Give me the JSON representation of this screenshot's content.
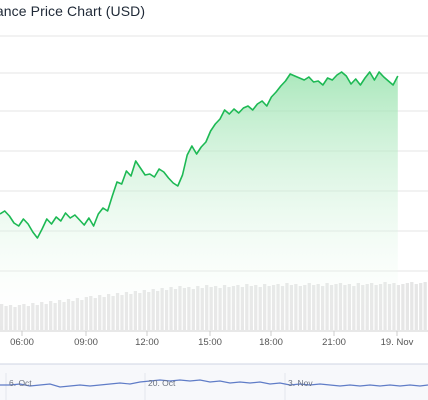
{
  "chart_data": {
    "type": "area",
    "title": "nance Price Chart (USD)",
    "colors": {
      "line": "#1db954",
      "fill": "#9be3b0",
      "volume": "#e6e6e6",
      "navigator": "#5f7cc7",
      "grid": "#e6e6e6"
    },
    "x_ticks": [
      "06:00",
      "09:00",
      "12:00",
      "15:00",
      "18:00",
      "21:00",
      "19. Nov"
    ],
    "price": {
      "x_range": [
        3.0,
        28.5
      ],
      "points": [
        [
          3.0,
          214
        ],
        [
          3.3,
          211
        ],
        [
          3.6,
          216
        ],
        [
          3.9,
          223
        ],
        [
          4.2,
          226
        ],
        [
          4.5,
          219
        ],
        [
          4.8,
          224
        ],
        [
          5.1,
          232
        ],
        [
          5.4,
          238
        ],
        [
          5.7,
          229
        ],
        [
          6.0,
          219
        ],
        [
          6.3,
          224
        ],
        [
          6.6,
          217
        ],
        [
          6.9,
          221
        ],
        [
          7.2,
          213
        ],
        [
          7.5,
          218
        ],
        [
          7.8,
          215
        ],
        [
          8.1,
          220
        ],
        [
          8.4,
          225
        ],
        [
          8.7,
          218
        ],
        [
          9.0,
          226
        ],
        [
          9.3,
          214
        ],
        [
          9.6,
          208
        ],
        [
          9.9,
          211
        ],
        [
          10.2,
          196
        ],
        [
          10.5,
          182
        ],
        [
          10.8,
          184
        ],
        [
          11.1,
          171
        ],
        [
          11.4,
          176
        ],
        [
          11.7,
          161
        ],
        [
          12.0,
          168
        ],
        [
          12.3,
          175
        ],
        [
          12.6,
          174
        ],
        [
          12.9,
          177
        ],
        [
          13.2,
          169
        ],
        [
          13.5,
          172
        ],
        [
          13.8,
          178
        ],
        [
          14.1,
          183
        ],
        [
          14.4,
          186
        ],
        [
          14.7,
          175
        ],
        [
          15.0,
          155
        ],
        [
          15.3,
          146
        ],
        [
          15.6,
          154
        ],
        [
          15.9,
          147
        ],
        [
          16.2,
          142
        ],
        [
          16.5,
          131
        ],
        [
          16.8,
          124
        ],
        [
          17.1,
          119
        ],
        [
          17.4,
          110
        ],
        [
          17.7,
          114
        ],
        [
          18.0,
          109
        ],
        [
          18.3,
          113
        ],
        [
          18.6,
          108
        ],
        [
          18.9,
          106
        ],
        [
          19.2,
          110
        ],
        [
          19.5,
          104
        ],
        [
          19.8,
          101
        ],
        [
          20.1,
          106
        ],
        [
          20.4,
          97
        ],
        [
          20.7,
          92
        ],
        [
          21.0,
          86
        ],
        [
          21.3,
          81
        ],
        [
          21.6,
          74
        ],
        [
          21.9,
          76
        ],
        [
          22.2,
          78
        ],
        [
          22.5,
          80
        ],
        [
          22.8,
          77
        ],
        [
          23.1,
          82
        ],
        [
          23.4,
          81
        ],
        [
          23.7,
          85
        ],
        [
          24.0,
          78
        ],
        [
          24.3,
          80
        ],
        [
          24.6,
          75
        ],
        [
          24.9,
          72
        ],
        [
          25.2,
          76
        ],
        [
          25.5,
          84
        ],
        [
          25.8,
          79
        ],
        [
          26.1,
          85
        ],
        [
          26.4,
          78
        ],
        [
          26.7,
          72
        ],
        [
          27.0,
          80
        ],
        [
          27.3,
          72
        ],
        [
          27.6,
          77
        ],
        [
          27.9,
          81
        ],
        [
          28.2,
          85
        ],
        [
          28.5,
          76
        ]
      ]
    },
    "volume": [
      304,
      306,
      305,
      307,
      305,
      304,
      306,
      303,
      305,
      302,
      304,
      301,
      303,
      300,
      302,
      299,
      301,
      298,
      300,
      297,
      296,
      298,
      295,
      297,
      294,
      296,
      293,
      295,
      292,
      294,
      291,
      293,
      290,
      292,
      289,
      291,
      288,
      290,
      287,
      289,
      286,
      288,
      287,
      289,
      286,
      288,
      285,
      287,
      286,
      288,
      285,
      287,
      286,
      285,
      287,
      284,
      286,
      285,
      287,
      284,
      286,
      285,
      284,
      286,
      283,
      285,
      284,
      286,
      285,
      283,
      285,
      284,
      286,
      283,
      285,
      284,
      283,
      285,
      284,
      286,
      283,
      285,
      284,
      283,
      285,
      284,
      282,
      284,
      283,
      285,
      284,
      283,
      282,
      284,
      283,
      282
    ],
    "navigator": {
      "labels": [
        "6. Oct",
        "20. Oct",
        "3. Nov"
      ],
      "points": [
        [
          0,
          385
        ],
        [
          10,
          385
        ],
        [
          20,
          384
        ],
        [
          30,
          386
        ],
        [
          40,
          385
        ],
        [
          50,
          384
        ],
        [
          60,
          387
        ],
        [
          70,
          386
        ],
        [
          80,
          385
        ],
        [
          90,
          386
        ],
        [
          100,
          385
        ],
        [
          110,
          384
        ],
        [
          120,
          383
        ],
        [
          130,
          384
        ],
        [
          140,
          382
        ],
        [
          150,
          381
        ],
        [
          160,
          380
        ],
        [
          170,
          381
        ],
        [
          180,
          380
        ],
        [
          190,
          381
        ],
        [
          200,
          380
        ],
        [
          210,
          382
        ],
        [
          220,
          381
        ],
        [
          230,
          383
        ],
        [
          240,
          382
        ],
        [
          250,
          383
        ],
        [
          260,
          382
        ],
        [
          270,
          384
        ],
        [
          280,
          383
        ],
        [
          290,
          385
        ],
        [
          300,
          384
        ],
        [
          310,
          385
        ],
        [
          320,
          384
        ],
        [
          330,
          385
        ],
        [
          340,
          386
        ],
        [
          350,
          385
        ],
        [
          360,
          386
        ],
        [
          370,
          385
        ],
        [
          380,
          386
        ],
        [
          390,
          385
        ],
        [
          400,
          386
        ],
        [
          410,
          385
        ],
        [
          420,
          386
        ],
        [
          428,
          385
        ]
      ]
    }
  }
}
